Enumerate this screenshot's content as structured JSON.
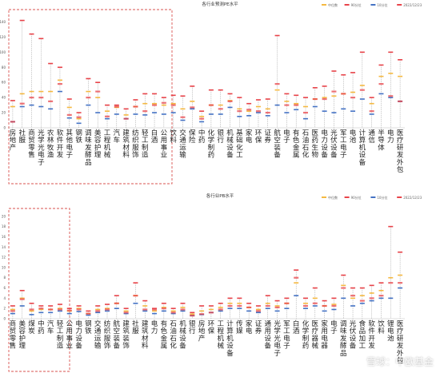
{
  "colors": {
    "median": "#F5B942",
    "p90": "#E8444A",
    "p10": "#4472C4",
    "current": "#E8444A",
    "highlight": "#D9534F"
  },
  "watermark": "雪球：中欧基金",
  "chart_data": [
    {
      "type": "range",
      "title": "各行业预测PE水平",
      "ylim": [
        0,
        150
      ],
      "yticks": [
        0,
        20,
        40,
        60,
        80,
        100,
        120,
        140
      ],
      "legend": [
        "中位数",
        "90分位",
        "10分位",
        "2022/12/23"
      ],
      "legend_position": "top-right",
      "categories": [
        "房地产",
        "社服",
        "商贸零售",
        "光学光电子",
        "农林牧渔",
        "软件开发",
        "其他电子",
        "钢铁",
        "调味发酵品",
        "美容护理",
        "工程机械",
        "汽车",
        "建筑材料",
        "纺织服饰",
        "轻工制造",
        "白酒",
        "公用事业",
        "饮料",
        "交通运输",
        "保险",
        "中药",
        "化学制药",
        "银行",
        "机械设备",
        "基础化工",
        "家电",
        "环保",
        "证券",
        "航空装备",
        "电子",
        "有色金属",
        "石油石化",
        "医药生物",
        "电力设备",
        "光伏设备",
        "军工电子",
        "电池",
        "计算机设备",
        "通信",
        "半导体",
        "电力",
        "医疗研发外包"
      ],
      "p90": [
        36,
        142,
        124,
        118,
        85,
        80,
        38,
        20,
        65,
        60,
        30,
        30,
        25,
        37,
        45,
        45,
        40,
        43,
        42,
        55,
        22,
        50,
        50,
        45,
        40,
        32,
        37,
        38,
        122,
        45,
        43,
        40,
        53,
        55,
        75,
        70,
        73,
        100,
        40,
        83,
        100,
        90
      ],
      "median": [
        28,
        45,
        48,
        48,
        48,
        63,
        27,
        12,
        48,
        40,
        22,
        27,
        17,
        28,
        32,
        32,
        30,
        32,
        25,
        35,
        15,
        30,
        30,
        36,
        25,
        22,
        28,
        25,
        50,
        35,
        32,
        28,
        38,
        40,
        42,
        45,
        47,
        56,
        32,
        68,
        72,
        68
      ],
      "p10": [
        8,
        28,
        30,
        28,
        25,
        48,
        13,
        6,
        30,
        20,
        12,
        18,
        12,
        18,
        17,
        20,
        18,
        20,
        10,
        25,
        8,
        18,
        18,
        27,
        15,
        16,
        20,
        16,
        30,
        20,
        24,
        12,
        28,
        22,
        20,
        25,
        22,
        38,
        18,
        45,
        40,
        35
      ],
      "current": [
        8,
        32,
        40,
        40,
        35,
        58,
        17,
        14,
        40,
        48,
        15,
        28,
        12,
        28,
        22,
        30,
        33,
        30,
        14,
        27,
        12,
        30,
        25,
        35,
        22,
        24,
        22,
        20,
        58,
        30,
        30,
        20,
        38,
        38,
        48,
        45,
        40,
        50,
        22,
        58,
        42,
        35
      ],
      "ylabel": "",
      "xlabel": ""
    },
    {
      "type": "range",
      "title": "各行业PB水平",
      "ylim": [
        0,
        22
      ],
      "yticks": [
        0,
        2,
        4,
        6,
        8,
        10,
        12,
        14,
        16,
        18,
        20
      ],
      "legend": [
        "中位数",
        "90分位",
        "10分位",
        "2022/12/23"
      ],
      "legend_position": "top-right",
      "categories": [
        "商贸零售",
        "美容护理",
        "煤炭",
        "中药",
        "汽车",
        "轻工制造",
        "公用事业",
        "电力设备",
        "钢铁",
        "交通运输",
        "纺织服饰",
        "航空装备",
        "建筑装饰",
        "社服",
        "建筑材料",
        "电力",
        "有色金属",
        "石油石化",
        "机械设备",
        "银行",
        "房地产",
        "环保",
        "工程机械",
        "计算机设备",
        "传媒",
        "家电",
        "证券",
        "通用设备",
        "光学光电子",
        "军工电子",
        "白酒",
        "化学制药",
        "医疗器械",
        "家用电器",
        "电子",
        "调味发酵品",
        "光伏设备",
        "食品加工",
        "软件开发",
        "饮料",
        "锂电池",
        "医疗研发外包"
      ],
      "p90": [
        2.5,
        5.5,
        3.0,
        2.5,
        2.5,
        2.8,
        2.0,
        2.5,
        1.5,
        2.5,
        2.8,
        4.5,
        2.0,
        7.0,
        3.5,
        2.0,
        3.0,
        2.0,
        3.0,
        1.2,
        2.5,
        2.5,
        3.0,
        4.0,
        4.0,
        3.0,
        2.5,
        4.5,
        3.5,
        4.0,
        9.5,
        4.0,
        6.0,
        3.5,
        4.0,
        8.5,
        6.0,
        6.0,
        6.5,
        7.0,
        18.0,
        13.0
      ],
      "median": [
        1.8,
        4.0,
        1.5,
        1.8,
        1.8,
        2.0,
        1.5,
        2.0,
        1.0,
        1.8,
        2.0,
        3.0,
        1.5,
        4.5,
        2.5,
        1.5,
        2.2,
        1.5,
        2.2,
        0.9,
        1.5,
        1.8,
        2.2,
        3.0,
        3.0,
        2.2,
        1.8,
        3.0,
        2.5,
        3.0,
        7.0,
        3.0,
        4.0,
        2.5,
        2.8,
        6.5,
        4.0,
        4.5,
        5.0,
        5.5,
        8.0,
        8.5
      ],
      "p10": [
        1.0,
        2.5,
        0.8,
        1.2,
        1.2,
        1.5,
        1.0,
        1.4,
        0.7,
        1.2,
        1.5,
        2.0,
        1.0,
        3.0,
        1.5,
        1.0,
        1.5,
        1.0,
        1.5,
        0.6,
        0.8,
        1.2,
        1.5,
        2.0,
        2.0,
        1.5,
        1.2,
        2.0,
        1.5,
        2.0,
        4.5,
        2.0,
        2.5,
        1.5,
        1.8,
        4.0,
        2.5,
        3.0,
        3.5,
        4.0,
        4.0,
        6.0
      ],
      "current": [
        1.5,
        3.8,
        1.8,
        2.0,
        1.8,
        1.8,
        1.6,
        1.8,
        1.0,
        1.5,
        1.8,
        3.0,
        1.2,
        4.5,
        1.8,
        1.8,
        2.0,
        1.2,
        1.8,
        0.6,
        0.9,
        1.2,
        1.8,
        2.5,
        2.5,
        2.2,
        1.5,
        2.5,
        2.2,
        3.0,
        8.0,
        2.5,
        3.0,
        2.5,
        2.5,
        6.0,
        4.5,
        3.5,
        4.0,
        4.5,
        7.0,
        7.0
      ],
      "ylabel": "",
      "xlabel": ""
    }
  ]
}
